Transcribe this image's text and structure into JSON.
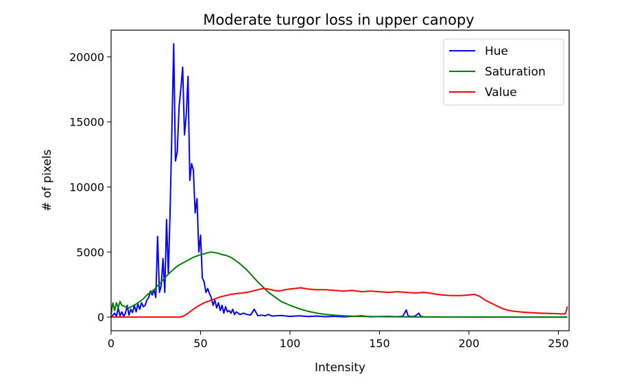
{
  "chart_data": {
    "type": "line",
    "title": "Moderate turgor loss in upper canopy",
    "xlabel": "Intensity",
    "ylabel": "# of pixels",
    "xlim": [
      0,
      256
    ],
    "ylim": [
      -1050,
      22050
    ],
    "x_ticks": [
      0,
      50,
      100,
      150,
      200,
      250
    ],
    "y_ticks": [
      0,
      5000,
      10000,
      15000,
      20000
    ],
    "grid": false,
    "legend_position": "top-right",
    "series": [
      {
        "name": "Hue",
        "color": "#0000ff",
        "points": [
          [
            0,
            0
          ],
          [
            2,
            300
          ],
          [
            3,
            50
          ],
          [
            4,
            700
          ],
          [
            5,
            100
          ],
          [
            6,
            400
          ],
          [
            7,
            50
          ],
          [
            8,
            300
          ],
          [
            9,
            900
          ],
          [
            10,
            150
          ],
          [
            11,
            600
          ],
          [
            12,
            350
          ],
          [
            13,
            900
          ],
          [
            14,
            400
          ],
          [
            15,
            1000
          ],
          [
            16,
            600
          ],
          [
            17,
            1100
          ],
          [
            18,
            800
          ],
          [
            19,
            900
          ],
          [
            20,
            1300
          ],
          [
            21,
            1500
          ],
          [
            22,
            2000
          ],
          [
            23,
            1700
          ],
          [
            24,
            2100
          ],
          [
            25,
            1500
          ],
          [
            26,
            6200
          ],
          [
            27,
            1900
          ],
          [
            28,
            2400
          ],
          [
            29,
            4500
          ],
          [
            30,
            1900
          ],
          [
            31,
            7500
          ],
          [
            32,
            3300
          ],
          [
            33,
            8200
          ],
          [
            34,
            14500
          ],
          [
            35,
            21000
          ],
          [
            36,
            12000
          ],
          [
            37,
            12700
          ],
          [
            38,
            16200
          ],
          [
            39,
            17600
          ],
          [
            40,
            19200
          ],
          [
            41,
            14000
          ],
          [
            42,
            15500
          ],
          [
            43,
            18500
          ],
          [
            44,
            10500
          ],
          [
            45,
            11800
          ],
          [
            46,
            11300
          ],
          [
            47,
            8000
          ],
          [
            48,
            9100
          ],
          [
            49,
            5000
          ],
          [
            50,
            6300
          ],
          [
            51,
            3000
          ],
          [
            52,
            2700
          ],
          [
            53,
            1900
          ],
          [
            54,
            2200
          ],
          [
            55,
            1800
          ],
          [
            56,
            1500
          ],
          [
            57,
            900
          ],
          [
            58,
            1300
          ],
          [
            59,
            700
          ],
          [
            60,
            1100
          ],
          [
            61,
            500
          ],
          [
            62,
            900
          ],
          [
            63,
            300
          ],
          [
            64,
            800
          ],
          [
            65,
            400
          ],
          [
            66,
            500
          ],
          [
            67,
            300
          ],
          [
            68,
            600
          ],
          [
            69,
            200
          ],
          [
            70,
            400
          ],
          [
            72,
            200
          ],
          [
            74,
            300
          ],
          [
            76,
            200
          ],
          [
            78,
            150
          ],
          [
            80,
            600
          ],
          [
            82,
            100
          ],
          [
            84,
            150
          ],
          [
            86,
            100
          ],
          [
            88,
            200
          ],
          [
            90,
            80
          ],
          [
            95,
            120
          ],
          [
            100,
            50
          ],
          [
            105,
            100
          ],
          [
            110,
            40
          ],
          [
            115,
            80
          ],
          [
            120,
            30
          ],
          [
            125,
            60
          ],
          [
            130,
            20
          ],
          [
            135,
            50
          ],
          [
            140,
            100
          ],
          [
            145,
            20
          ],
          [
            150,
            40
          ],
          [
            155,
            50
          ],
          [
            160,
            30
          ],
          [
            163,
            60
          ],
          [
            165,
            550
          ],
          [
            166,
            80
          ],
          [
            168,
            30
          ],
          [
            170,
            80
          ],
          [
            172,
            300
          ],
          [
            173,
            50
          ],
          [
            175,
            20
          ],
          [
            180,
            10
          ],
          [
            190,
            5
          ],
          [
            200,
            2
          ],
          [
            210,
            0
          ],
          [
            230,
            0
          ],
          [
            255,
            0
          ]
        ]
      },
      {
        "name": "Saturation",
        "color": "#008000",
        "points": [
          [
            0,
            200
          ],
          [
            1,
            1100
          ],
          [
            2,
            500
          ],
          [
            3,
            1100
          ],
          [
            4,
            700
          ],
          [
            5,
            1200
          ],
          [
            6,
            900
          ],
          [
            8,
            800
          ],
          [
            10,
            700
          ],
          [
            12,
            850
          ],
          [
            14,
            1000
          ],
          [
            16,
            1200
          ],
          [
            18,
            1400
          ],
          [
            20,
            1700
          ],
          [
            22,
            1900
          ],
          [
            24,
            2100
          ],
          [
            26,
            2400
          ],
          [
            28,
            2700
          ],
          [
            30,
            3000
          ],
          [
            32,
            3300
          ],
          [
            34,
            3550
          ],
          [
            36,
            3800
          ],
          [
            38,
            4000
          ],
          [
            40,
            4150
          ],
          [
            42,
            4300
          ],
          [
            44,
            4450
          ],
          [
            46,
            4600
          ],
          [
            48,
            4700
          ],
          [
            50,
            4800
          ],
          [
            52,
            4850
          ],
          [
            54,
            4950
          ],
          [
            56,
            5000
          ],
          [
            58,
            4950
          ],
          [
            60,
            4900
          ],
          [
            62,
            4800
          ],
          [
            64,
            4750
          ],
          [
            66,
            4650
          ],
          [
            68,
            4500
          ],
          [
            70,
            4300
          ],
          [
            72,
            4100
          ],
          [
            74,
            3850
          ],
          [
            76,
            3600
          ],
          [
            78,
            3300
          ],
          [
            80,
            3000
          ],
          [
            82,
            2700
          ],
          [
            85,
            2300
          ],
          [
            88,
            1900
          ],
          [
            91,
            1600
          ],
          [
            95,
            1200
          ],
          [
            100,
            900
          ],
          [
            105,
            650
          ],
          [
            110,
            450
          ],
          [
            115,
            300
          ],
          [
            120,
            200
          ],
          [
            125,
            140
          ],
          [
            130,
            100
          ],
          [
            135,
            70
          ],
          [
            140,
            50
          ],
          [
            145,
            40
          ],
          [
            150,
            30
          ],
          [
            160,
            20
          ],
          [
            170,
            10
          ],
          [
            180,
            5
          ],
          [
            200,
            2
          ],
          [
            220,
            0
          ],
          [
            255,
            0
          ]
        ]
      },
      {
        "name": "Value",
        "color": "#ff0000",
        "points": [
          [
            0,
            0
          ],
          [
            20,
            0
          ],
          [
            30,
            0
          ],
          [
            38,
            0
          ],
          [
            40,
            50
          ],
          [
            42,
            200
          ],
          [
            44,
            400
          ],
          [
            46,
            600
          ],
          [
            48,
            800
          ],
          [
            50,
            950
          ],
          [
            52,
            1100
          ],
          [
            55,
            1250
          ],
          [
            58,
            1400
          ],
          [
            61,
            1550
          ],
          [
            64,
            1650
          ],
          [
            67,
            1750
          ],
          [
            70,
            1800
          ],
          [
            73,
            1850
          ],
          [
            76,
            1900
          ],
          [
            79,
            2000
          ],
          [
            82,
            2100
          ],
          [
            85,
            2200
          ],
          [
            88,
            2150
          ],
          [
            91,
            2050
          ],
          [
            94,
            2000
          ],
          [
            97,
            2100
          ],
          [
            100,
            2150
          ],
          [
            103,
            2200
          ],
          [
            106,
            2250
          ],
          [
            110,
            2150
          ],
          [
            115,
            2100
          ],
          [
            120,
            2100
          ],
          [
            125,
            2050
          ],
          [
            130,
            2000
          ],
          [
            135,
            2050
          ],
          [
            140,
            1950
          ],
          [
            145,
            2000
          ],
          [
            150,
            1950
          ],
          [
            155,
            1900
          ],
          [
            160,
            1950
          ],
          [
            165,
            1900
          ],
          [
            170,
            1850
          ],
          [
            175,
            1900
          ],
          [
            180,
            1800
          ],
          [
            185,
            1700
          ],
          [
            190,
            1650
          ],
          [
            195,
            1650
          ],
          [
            200,
            1700
          ],
          [
            203,
            1750
          ],
          [
            206,
            1600
          ],
          [
            209,
            1300
          ],
          [
            212,
            1100
          ],
          [
            215,
            900
          ],
          [
            218,
            700
          ],
          [
            221,
            550
          ],
          [
            225,
            450
          ],
          [
            230,
            380
          ],
          [
            235,
            330
          ],
          [
            240,
            300
          ],
          [
            245,
            280
          ],
          [
            250,
            260
          ],
          [
            252,
            250
          ],
          [
            253,
            220
          ],
          [
            254,
            300
          ],
          [
            255,
            800
          ]
        ]
      }
    ]
  }
}
